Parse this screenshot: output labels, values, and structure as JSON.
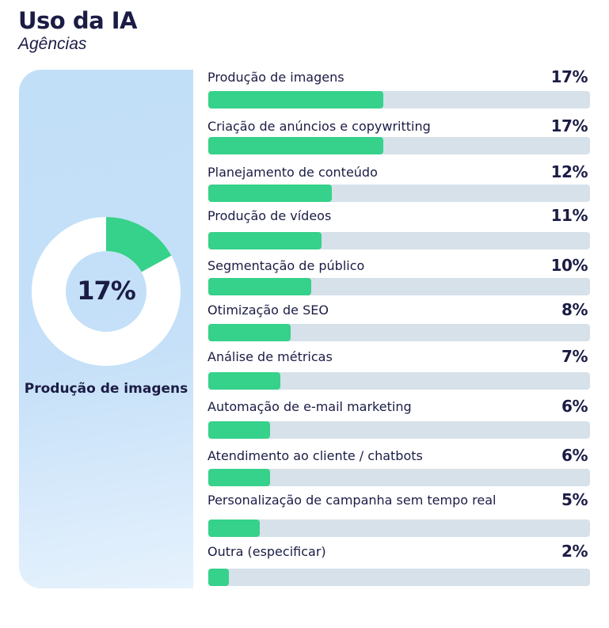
{
  "header": {
    "title": "Uso da IA",
    "subtitle": "Agências"
  },
  "colors": {
    "accent": "#36d18a",
    "track": "#d6e1ea",
    "panel": "#c2dff8",
    "text": "#1b1c45"
  },
  "highlight": {
    "value_label": "17%",
    "value": 17,
    "label": "Produção de imagens"
  },
  "chart_data": {
    "type": "bar",
    "orientation": "horizontal",
    "categories": [
      "Produção de imagens",
      "Criação de anúncios e copywritting",
      "Planejamento de conteúdo",
      "Produção de vídeos",
      "Segmentação de público",
      "Otimização de SEO",
      "Análise de métricas",
      "Automação de e-mail marketing",
      "Atendimento ao cliente / chatbots",
      "Personalização de campanha sem tempo real",
      "Outra (especificar)"
    ],
    "values": [
      17,
      17,
      12,
      11,
      10,
      8,
      7,
      6,
      6,
      5,
      2
    ],
    "labels": [
      "17%",
      "17%",
      "12%",
      "11%",
      "10%",
      "8%",
      "7%",
      "6%",
      "6%",
      "5%",
      "2%"
    ],
    "xlim": [
      0,
      37
    ],
    "unit": "%"
  }
}
